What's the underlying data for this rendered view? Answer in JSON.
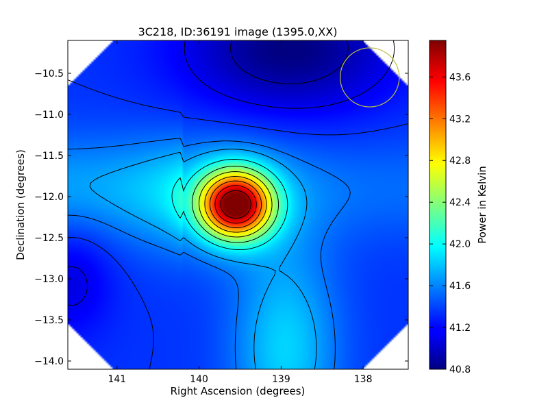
{
  "chart_data": {
    "type": "heatmap",
    "title": "3C218, ID:36191 image (1395.0,XX)",
    "xlabel": "Right Ascension (degrees)",
    "ylabel": "Declination (degrees)",
    "colorbar_label": "Power in Kelvin",
    "colormap": "jet",
    "xlim": [
      141.6,
      137.45
    ],
    "ylim": [
      -14.1,
      -10.1
    ],
    "x_inverted": true,
    "x_ticks": [
      141,
      140,
      139,
      138
    ],
    "x_tick_labels": [
      "141",
      "140",
      "139",
      "138"
    ],
    "y_ticks": [
      -10.5,
      -11.0,
      -11.5,
      -12.0,
      -12.5,
      -13.0,
      -13.5,
      -14.0
    ],
    "y_tick_labels": [
      "−10.5",
      "−11.0",
      "−11.5",
      "−12.0",
      "−12.5",
      "−13.0",
      "−13.5",
      "−14.0"
    ],
    "colorbar_range": [
      40.8,
      43.95
    ],
    "colorbar_ticks": [
      40.8,
      41.2,
      41.6,
      42.0,
      42.4,
      42.8,
      43.2,
      43.6
    ],
    "colorbar_tick_labels": [
      "40.8",
      "41.2",
      "41.6",
      "42.0",
      "42.4",
      "42.8",
      "43.2",
      "43.6"
    ],
    "peak": {
      "ra": 139.55,
      "dec": -12.1,
      "value": 43.9
    },
    "secondary_peak": {
      "ra": 138.95,
      "dec": -13.85,
      "value": 41.95
    },
    "beam_circle": {
      "ra": 137.92,
      "dec": -10.55,
      "radius_deg": 0.36
    },
    "contour_levels": [
      40.95,
      41.15,
      41.35,
      41.55,
      41.7,
      42.0,
      42.3,
      42.6,
      42.9,
      43.2,
      43.5,
      43.8
    ],
    "colors": {
      "contour": "#000000",
      "beam_circle": "#bfbf40"
    }
  }
}
